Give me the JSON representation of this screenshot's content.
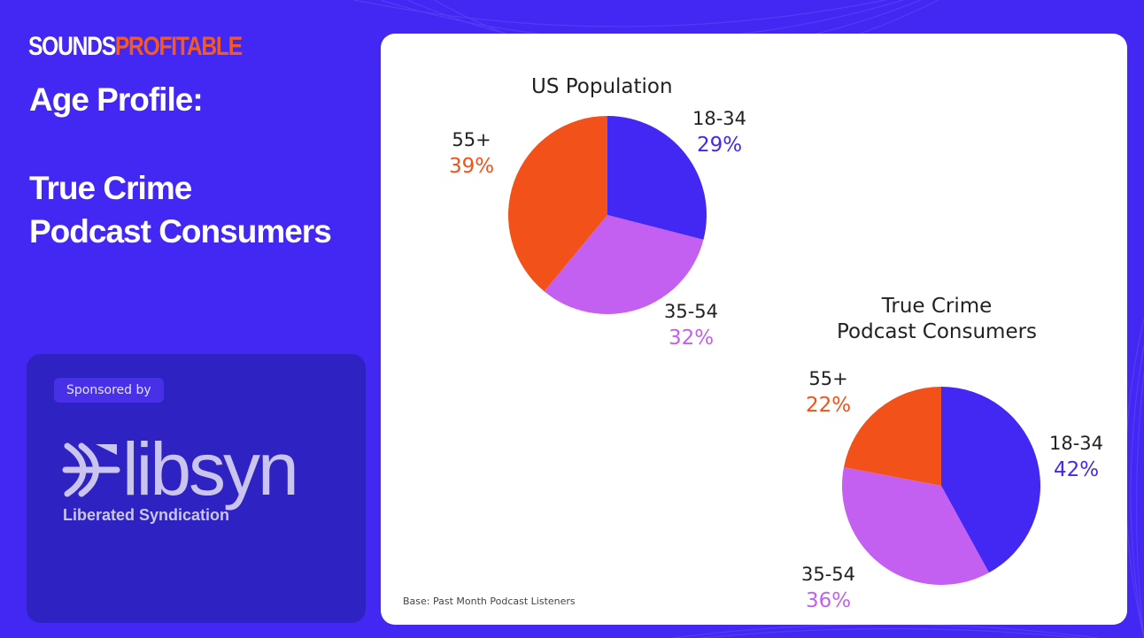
{
  "brand": {
    "part1": "SOUNDS",
    "part2": "PROFITABLE"
  },
  "heading": {
    "line1": "Age Profile:",
    "line2": "True Crime",
    "line3": "Podcast Consumers"
  },
  "sponsor": {
    "label": "Sponsored by",
    "logo_word": "libsyn",
    "logo_tagline": "Liberated Syndication"
  },
  "colors": {
    "background": "#4327f2",
    "age_18_34": "#4327f2",
    "age_35_54": "#c35ff1",
    "age_55_plus": "#f25219"
  },
  "chart_data": [
    {
      "type": "pie",
      "title": "US Population",
      "categories": [
        "18-34",
        "35-54",
        "55+"
      ],
      "values": [
        29,
        32,
        39
      ],
      "value_labels": [
        "29%",
        "32%",
        "39%"
      ],
      "colors": [
        "#4327f2",
        "#c35ff1",
        "#f25219"
      ]
    },
    {
      "type": "pie",
      "title": "True Crime Podcast Consumers",
      "title_lines": [
        "True Crime",
        "Podcast Consumers"
      ],
      "categories": [
        "18-34",
        "35-54",
        "55+"
      ],
      "values": [
        42,
        36,
        22
      ],
      "value_labels": [
        "42%",
        "36%",
        "22%"
      ],
      "colors": [
        "#4327f2",
        "#c35ff1",
        "#f25219"
      ]
    }
  ],
  "footnote": "Base: Past Month Podcast Listeners"
}
